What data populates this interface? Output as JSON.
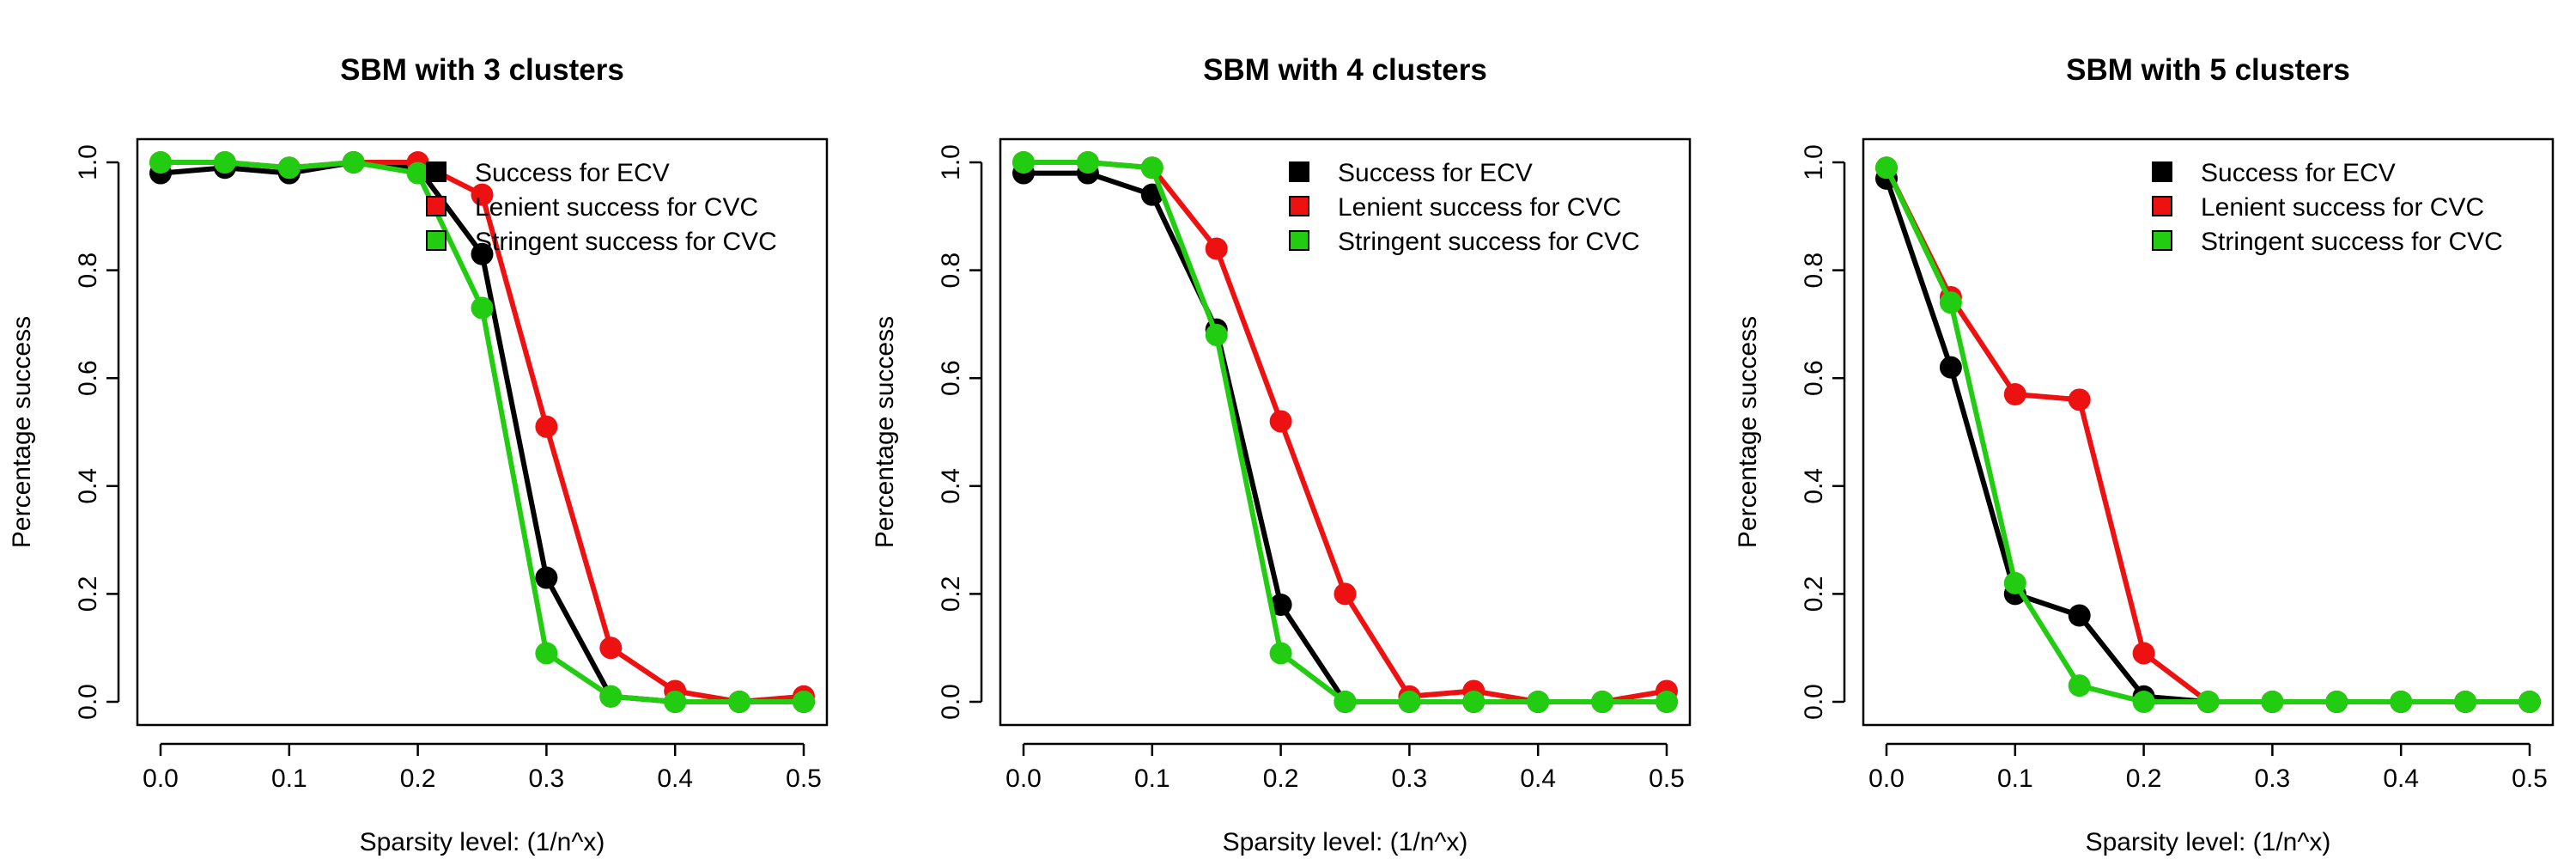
{
  "chart_data": [
    {
      "type": "line",
      "title": "SBM with 3 clusters",
      "xlabel": "Sparsity level: (1/n^x)",
      "ylabel": "Percentage success",
      "xlim": [
        0.0,
        0.5
      ],
      "ylim": [
        0.0,
        1.0
      ],
      "xticks": [
        "0.0",
        "0.1",
        "0.2",
        "0.3",
        "0.4",
        "0.5"
      ],
      "yticks": [
        "0.0",
        "0.2",
        "0.4",
        "0.6",
        "0.8",
        "1.0"
      ],
      "legend": "top-right",
      "x": [
        0.0,
        0.05,
        0.1,
        0.15,
        0.2,
        0.25,
        0.3,
        0.35,
        0.4,
        0.45,
        0.5
      ],
      "series": [
        {
          "name": "Success for ECV",
          "color": "#000000",
          "values": [
            0.98,
            0.99,
            0.98,
            1.0,
            0.99,
            0.83,
            0.23,
            0.01,
            0.0,
            0.0,
            0.0
          ]
        },
        {
          "name": "Lenient success for CVC",
          "color": "#ee1111",
          "values": [
            1.0,
            1.0,
            0.99,
            1.0,
            1.0,
            0.94,
            0.51,
            0.1,
            0.02,
            0.0,
            0.01
          ]
        },
        {
          "name": "Stringent success for CVC",
          "color": "#22cc11",
          "values": [
            1.0,
            1.0,
            0.99,
            1.0,
            0.98,
            0.73,
            0.09,
            0.01,
            0.0,
            0.0,
            0.0
          ]
        }
      ]
    },
    {
      "type": "line",
      "title": "SBM with 4 clusters",
      "xlabel": "Sparsity level: (1/n^x)",
      "ylabel": "Percentage success",
      "xlim": [
        0.0,
        0.5
      ],
      "ylim": [
        0.0,
        1.0
      ],
      "xticks": [
        "0.0",
        "0.1",
        "0.2",
        "0.3",
        "0.4",
        "0.5"
      ],
      "yticks": [
        "0.0",
        "0.2",
        "0.4",
        "0.6",
        "0.8",
        "1.0"
      ],
      "legend": "top-right",
      "x": [
        0.0,
        0.05,
        0.1,
        0.15,
        0.2,
        0.25,
        0.3,
        0.35,
        0.4,
        0.45,
        0.5
      ],
      "series": [
        {
          "name": "Success for ECV",
          "color": "#000000",
          "values": [
            0.98,
            0.98,
            0.94,
            0.69,
            0.18,
            0.0,
            0.0,
            0.0,
            0.0,
            0.0,
            0.0
          ]
        },
        {
          "name": "Lenient success for CVC",
          "color": "#ee1111",
          "values": [
            1.0,
            1.0,
            0.99,
            0.84,
            0.52,
            0.2,
            0.01,
            0.02,
            0.0,
            0.0,
            0.02
          ]
        },
        {
          "name": "Stringent success for CVC",
          "color": "#22cc11",
          "values": [
            1.0,
            1.0,
            0.99,
            0.68,
            0.09,
            0.0,
            0.0,
            0.0,
            0.0,
            0.0,
            0.0
          ]
        }
      ]
    },
    {
      "type": "line",
      "title": "SBM with 5 clusters",
      "xlabel": "Sparsity level: (1/n^x)",
      "ylabel": "Percentage success",
      "xlim": [
        0.0,
        0.5
      ],
      "ylim": [
        0.0,
        1.0
      ],
      "xticks": [
        "0.0",
        "0.1",
        "0.2",
        "0.3",
        "0.4",
        "0.5"
      ],
      "yticks": [
        "0.0",
        "0.2",
        "0.4",
        "0.6",
        "0.8",
        "1.0"
      ],
      "legend": "top-right",
      "x": [
        0.0,
        0.05,
        0.1,
        0.15,
        0.2,
        0.25,
        0.3,
        0.35,
        0.4,
        0.45,
        0.5
      ],
      "series": [
        {
          "name": "Success for ECV",
          "color": "#000000",
          "values": [
            0.97,
            0.62,
            0.2,
            0.16,
            0.01,
            0.0,
            0.0,
            0.0,
            0.0,
            0.0,
            0.0
          ]
        },
        {
          "name": "Lenient success for CVC",
          "color": "#ee1111",
          "values": [
            0.99,
            0.75,
            0.57,
            0.56,
            0.09,
            0.0,
            0.0,
            0.0,
            0.0,
            0.0,
            0.0
          ]
        },
        {
          "name": "Stringent success for CVC",
          "color": "#22cc11",
          "values": [
            0.99,
            0.74,
            0.22,
            0.03,
            0.0,
            0.0,
            0.0,
            0.0,
            0.0,
            0.0,
            0.0
          ]
        }
      ]
    }
  ]
}
